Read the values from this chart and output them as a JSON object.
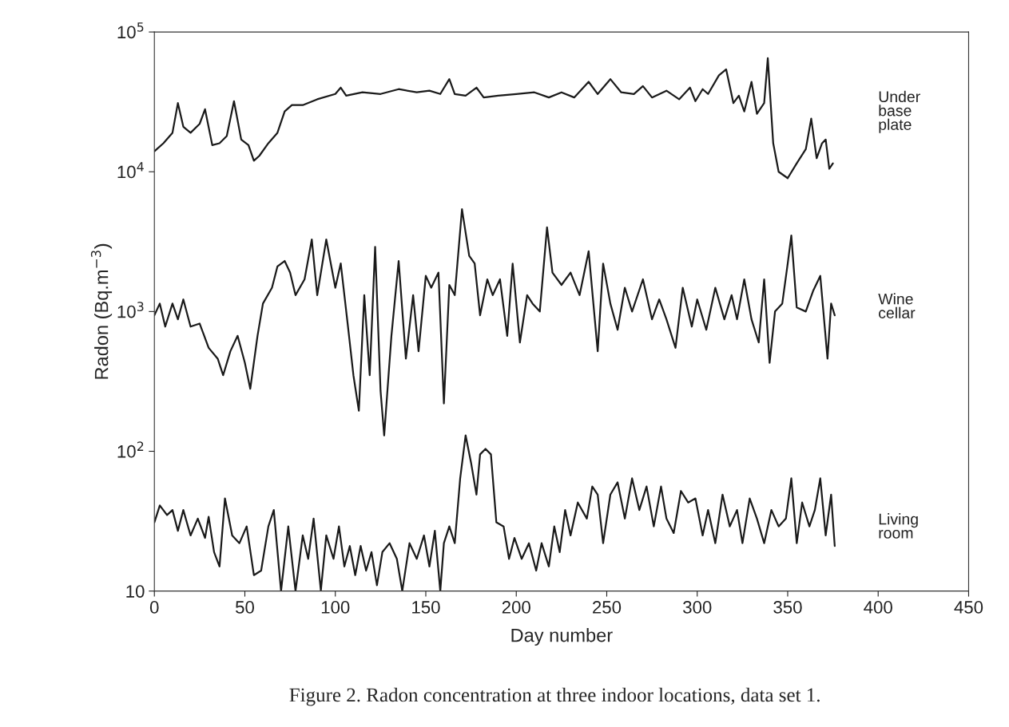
{
  "chart_data": {
    "type": "line",
    "xlabel": "Day number",
    "ylabel": "Radon (Bq.m$^{−3}$)",
    "log": "y",
    "grid": false,
    "legend": false,
    "line_style": "solid",
    "marker": "none",
    "xlim": [
      0,
      450
    ],
    "xticks": [
      0,
      50,
      100,
      150,
      200,
      250,
      300,
      350,
      400,
      450
    ],
    "ylim": [
      10,
      100000
    ],
    "yticks": [
      {
        "value": 10,
        "label": "10"
      },
      {
        "value": 100,
        "label": "10$^{2}$"
      },
      {
        "value": 1000,
        "label": "10$^{3}$"
      },
      {
        "value": 10000,
        "label": "10$^{4}$"
      },
      {
        "value": 100000,
        "label": "10$^{5}$"
      }
    ],
    "annotations": [
      "Figure 2. Radon concentration at three indoor locations, data set 1."
    ],
    "series": [
      {
        "name": "Under\nbase\nplate",
        "color": "#1a1a1a",
        "x": [
          0,
          5,
          10,
          13,
          16,
          20,
          25,
          28,
          32,
          36,
          40,
          44,
          48,
          52,
          55,
          58,
          63,
          68,
          72,
          76,
          82,
          90,
          100,
          103,
          106,
          115,
          125,
          135,
          145,
          152,
          158,
          163,
          166,
          172,
          178,
          182,
          190,
          200,
          210,
          218,
          225,
          232,
          240,
          245,
          252,
          258,
          265,
          270,
          275,
          283,
          290,
          296,
          299,
          303,
          306,
          312,
          316,
          320,
          323,
          326,
          330,
          333,
          337,
          339,
          342,
          345,
          350,
          355,
          360,
          363,
          366,
          369,
          371,
          373,
          375
        ],
        "values": [
          14000,
          16000,
          19000,
          31000,
          21000,
          19000,
          22000,
          28000,
          15500,
          16000,
          18000,
          32000,
          17000,
          15500,
          12000,
          13000,
          16000,
          19000,
          27000,
          30000,
          30000,
          33000,
          36000,
          40000,
          35000,
          37000,
          36000,
          39000,
          37000,
          38000,
          36000,
          46000,
          36000,
          35000,
          40000,
          34000,
          35000,
          36000,
          37000,
          34000,
          37000,
          34000,
          44000,
          36000,
          46000,
          37000,
          36000,
          41000,
          34000,
          38000,
          33000,
          40000,
          32000,
          39000,
          36000,
          49000,
          54000,
          31000,
          35000,
          27000,
          44000,
          26000,
          31000,
          65000,
          16000,
          10000,
          9000,
          11500,
          14500,
          24000,
          12500,
          16000,
          17000,
          10500,
          11500
        ]
      },
      {
        "name": "Wine\ncellar",
        "color": "#1a1a1a",
        "x": [
          0,
          3,
          6,
          10,
          13,
          16,
          20,
          25,
          30,
          35,
          38,
          42,
          46,
          50,
          53,
          57,
          60,
          65,
          68,
          72,
          75,
          78,
          83,
          87,
          90,
          95,
          100,
          103,
          107,
          110,
          113,
          116,
          119,
          122,
          125,
          127,
          131,
          135,
          139,
          143,
          146,
          150,
          153,
          157,
          160,
          163,
          166,
          170,
          174,
          177,
          180,
          184,
          187,
          191,
          195,
          198,
          202,
          206,
          209,
          213,
          217,
          220,
          225,
          230,
          235,
          240,
          245,
          248,
          252,
          256,
          260,
          264,
          270,
          275,
          279,
          283,
          288,
          292,
          297,
          300,
          305,
          310,
          315,
          319,
          322,
          326,
          330,
          334,
          337,
          340,
          343,
          347,
          350,
          352,
          355,
          360,
          364,
          368,
          372,
          374,
          376
        ],
        "values": [
          940,
          1140,
          780,
          1140,
          880,
          1220,
          780,
          820,
          550,
          460,
          350,
          520,
          670,
          430,
          280,
          670,
          1140,
          1480,
          2100,
          2300,
          1900,
          1310,
          1700,
          3280,
          1310,
          3280,
          1480,
          2210,
          780,
          350,
          195,
          1310,
          350,
          2900,
          270,
          130,
          670,
          2300,
          460,
          1310,
          520,
          1800,
          1480,
          1900,
          220,
          1550,
          1310,
          5400,
          2500,
          2210,
          940,
          1700,
          1310,
          1700,
          670,
          2200,
          600,
          1310,
          1140,
          1000,
          4000,
          1900,
          1550,
          1900,
          1310,
          2700,
          520,
          2200,
          1140,
          740,
          1480,
          1000,
          1700,
          880,
          1220,
          880,
          550,
          1480,
          780,
          1220,
          740,
          1480,
          880,
          1310,
          880,
          1700,
          880,
          600,
          1700,
          430,
          1000,
          1140,
          2200,
          3500,
          1070,
          1000,
          1400,
          1800,
          460,
          1140,
          940
        ]
      },
      {
        "name": "Living\nroom",
        "color": "#1a1a1a",
        "x": [
          0,
          3,
          7,
          10,
          13,
          16,
          20,
          24,
          28,
          30,
          33,
          36,
          39,
          43,
          47,
          51,
          55,
          59,
          63,
          66,
          70,
          74,
          78,
          82,
          85,
          88,
          92,
          95,
          99,
          102,
          105,
          108,
          111,
          114,
          117,
          120,
          123,
          126,
          130,
          134,
          137,
          141,
          145,
          149,
          152,
          155,
          158,
          160,
          163,
          166,
          169,
          172,
          175,
          178,
          180,
          183,
          186,
          189,
          193,
          196,
          199,
          203,
          207,
          211,
          214,
          218,
          221,
          224,
          227,
          230,
          234,
          239,
          242,
          245,
          248,
          252,
          256,
          260,
          264,
          268,
          272,
          276,
          280,
          283,
          287,
          291,
          295,
          299,
          303,
          306,
          310,
          314,
          318,
          322,
          325,
          329,
          333,
          337,
          341,
          345,
          349,
          352,
          355,
          358,
          362,
          365,
          368,
          371,
          374,
          376
        ],
        "values": [
          31,
          41,
          35,
          38,
          27,
          38,
          25,
          33,
          24,
          34,
          19,
          15,
          46,
          25,
          22,
          29,
          13,
          14,
          29,
          38,
          10,
          29,
          10,
          25,
          17,
          33,
          10.1,
          25,
          17,
          29,
          15,
          21,
          13,
          21,
          14,
          19,
          11,
          19,
          22,
          17,
          10,
          22,
          17,
          25,
          15,
          27,
          10,
          22,
          29,
          22,
          64,
          130,
          83,
          49,
          95,
          104,
          95,
          31,
          29,
          17,
          24,
          17,
          22,
          14,
          22,
          15,
          29,
          19,
          38,
          25,
          43,
          33,
          56,
          49,
          22,
          49,
          60,
          33,
          64,
          38,
          56,
          29,
          56,
          33,
          26,
          52,
          43,
          46,
          25,
          38,
          22,
          49,
          29,
          38,
          22,
          46,
          33,
          22,
          38,
          29,
          33,
          64,
          22,
          43,
          29,
          38,
          64,
          25,
          49,
          21
        ]
      }
    ]
  }
}
